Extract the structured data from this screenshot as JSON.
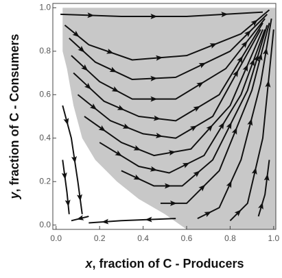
{
  "chart_data": {
    "type": "stream",
    "xlabel_var": "x",
    "xlabel": ", fraction of C - Producers",
    "ylabel_var": "y",
    "ylabel": ", fraction of C - Consumers",
    "xlim": [
      -0.015,
      1.01
    ],
    "ylim": [
      -0.02,
      1.02
    ],
    "xticks": [
      {
        "value": 0,
        "label": "0.0"
      },
      {
        "value": 0.2,
        "label": "0.2"
      },
      {
        "value": 0.4,
        "label": "0.4"
      },
      {
        "value": 0.6,
        "label": "0.6"
      },
      {
        "value": 0.8,
        "label": "0.8"
      },
      {
        "value": 1,
        "label": "1.0"
      }
    ],
    "yticks": [
      {
        "value": 0,
        "label": "0.0"
      },
      {
        "value": 0.2,
        "label": "0.2"
      },
      {
        "value": 0.4,
        "label": "0.4"
      },
      {
        "value": 0.6,
        "label": "0.6"
      },
      {
        "value": 0.8,
        "label": "0.8"
      },
      {
        "value": 1,
        "label": "1.0"
      }
    ],
    "region": {
      "color": "#c8c8c8",
      "x": [
        0.03,
        0.03,
        0.05,
        0.08,
        0.12,
        0.18,
        0.28,
        0.38,
        0.5,
        0.6,
        1.01,
        1.01,
        0.03
      ],
      "y": [
        1.0,
        0.8,
        0.72,
        0.55,
        0.4,
        0.3,
        0.2,
        0.12,
        0.05,
        -0.02,
        -0.02,
        1.0,
        1.0
      ]
    },
    "line_color": "#111111",
    "streamlines": [
      {
        "x": [
          0.02,
          0.3,
          0.6,
          0.95
        ],
        "y": [
          0.97,
          0.96,
          0.96,
          0.98
        ]
      },
      {
        "x": [
          0.04,
          0.15,
          0.35,
          0.6,
          0.85,
          0.98
        ],
        "y": [
          0.92,
          0.83,
          0.76,
          0.78,
          0.88,
          0.99
        ]
      },
      {
        "x": [
          0.06,
          0.18,
          0.35,
          0.55,
          0.8,
          0.97
        ],
        "y": [
          0.86,
          0.75,
          0.67,
          0.68,
          0.8,
          0.97
        ]
      },
      {
        "x": [
          0.07,
          0.2,
          0.35,
          0.55,
          0.78,
          0.96
        ],
        "y": [
          0.78,
          0.66,
          0.58,
          0.58,
          0.72,
          0.95
        ]
      },
      {
        "x": [
          0.08,
          0.22,
          0.38,
          0.55,
          0.75,
          0.95
        ],
        "y": [
          0.7,
          0.57,
          0.5,
          0.48,
          0.6,
          0.93
        ]
      },
      {
        "x": [
          0.1,
          0.25,
          0.4,
          0.55,
          0.72,
          0.94
        ],
        "y": [
          0.6,
          0.48,
          0.42,
          0.4,
          0.5,
          0.9
        ]
      },
      {
        "x": [
          0.13,
          0.3,
          0.45,
          0.62,
          0.8,
          0.95
        ],
        "y": [
          0.5,
          0.38,
          0.32,
          0.35,
          0.55,
          0.9
        ]
      },
      {
        "x": [
          0.2,
          0.38,
          0.52,
          0.68,
          0.85,
          0.96
        ],
        "y": [
          0.38,
          0.27,
          0.24,
          0.32,
          0.6,
          0.9
        ]
      },
      {
        "x": [
          0.3,
          0.45,
          0.58,
          0.72,
          0.88,
          0.97
        ],
        "y": [
          0.25,
          0.18,
          0.18,
          0.3,
          0.62,
          0.92
        ]
      },
      {
        "x": [
          0.48,
          0.6,
          0.75,
          0.9,
          0.98
        ],
        "y": [
          0.1,
          0.1,
          0.25,
          0.62,
          0.93
        ]
      },
      {
        "x": [
          0.65,
          0.75,
          0.85,
          0.94,
          0.99
        ],
        "y": [
          0.03,
          0.08,
          0.3,
          0.65,
          0.95
        ]
      },
      {
        "x": [
          0.8,
          0.88,
          0.95,
          1.0
        ],
        "y": [
          0.02,
          0.1,
          0.4,
          0.9
        ]
      },
      {
        "x": [
          0.93,
          0.96,
          0.98
        ],
        "y": [
          0.04,
          0.14,
          0.3
        ]
      },
      {
        "x": [
          0.03,
          0.07,
          0.1,
          0.12
        ],
        "y": [
          0.55,
          0.4,
          0.2,
          0.05
        ]
      },
      {
        "x": [
          0.03,
          0.05,
          0.06
        ],
        "y": [
          0.3,
          0.15,
          0.05
        ]
      },
      {
        "x": [
          0.55,
          0.3,
          0.15
        ],
        "y": [
          0.03,
          0.02,
          0.01
        ]
      },
      {
        "x": [
          0.15,
          0.07
        ],
        "y": [
          0.04,
          0.02
        ]
      }
    ]
  }
}
